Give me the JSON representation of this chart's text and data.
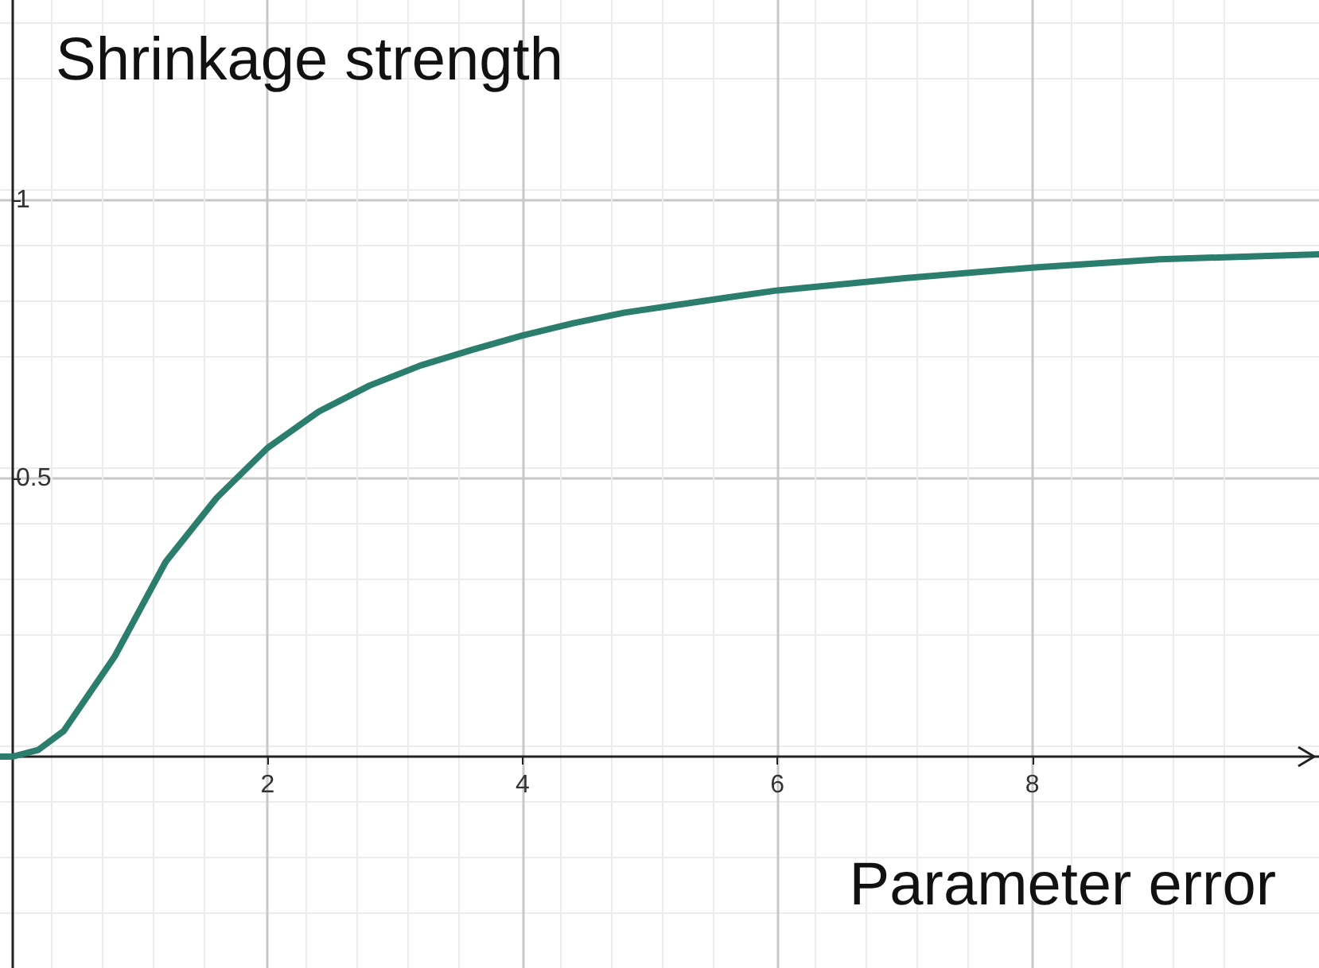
{
  "chart_data": {
    "type": "line",
    "xlabel": "Parameter error",
    "ylabel": "Shrinkage strength",
    "x": [
      -0.1,
      0,
      0.2,
      0.4,
      0.8,
      1.2,
      1.6,
      2,
      2.4,
      2.8,
      3.2,
      3.6,
      4,
      4.4,
      4.8,
      5.6,
      6,
      7,
      8,
      9,
      10,
      10.25
    ],
    "series": [
      {
        "color": "#2b7d6d",
        "values": [
          0,
          0,
          0.012,
          0.046,
          0.18,
          0.35,
          0.465,
          0.555,
          0.62,
          0.667,
          0.703,
          0.731,
          0.757,
          0.779,
          0.798,
          0.825,
          0.838,
          0.86,
          0.879,
          0.894,
          0.901,
          0.903
        ]
      }
    ],
    "xlim": [
      -0.1,
      10.25
    ],
    "ylim": [
      -0.38,
      1.36
    ],
    "xticks": [
      2,
      4,
      6,
      8
    ],
    "yticks": [
      0.5,
      1
    ],
    "grid": true,
    "marker": "none",
    "line_style": "solid"
  }
}
